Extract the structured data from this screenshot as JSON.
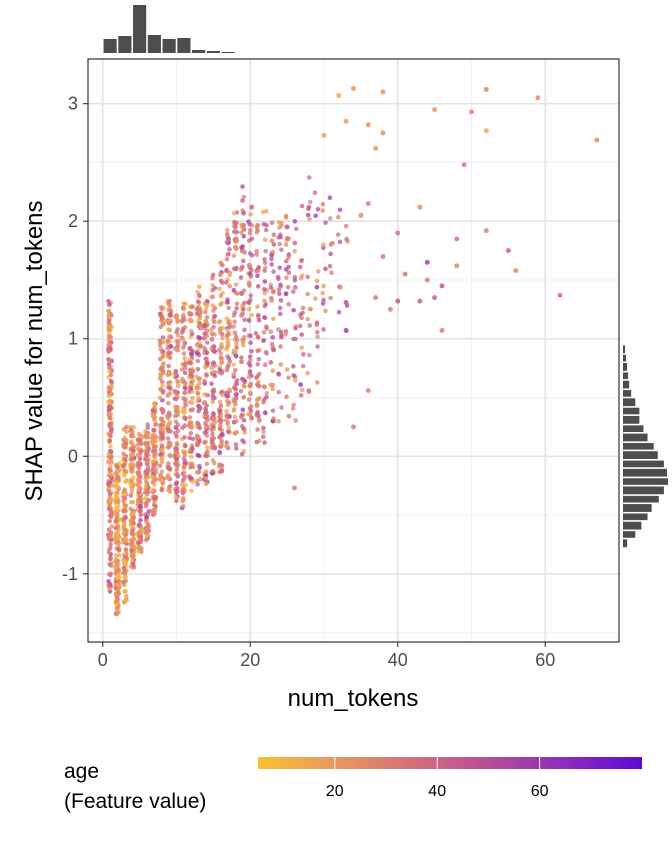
{
  "chart_data": {
    "type": "scatter",
    "title": "",
    "xlabel": "num_tokens",
    "ylabel": "SHAP value for num_tokens",
    "xlim": [
      -2,
      70
    ],
    "ylim": [
      -1.58,
      3.38
    ],
    "x_ticks": [
      0,
      20,
      40,
      60
    ],
    "y_ticks": [
      -1,
      0,
      1,
      2,
      3
    ],
    "grid": true,
    "color_scale": {
      "title_line1": "age",
      "title_line2": "(Feature value)",
      "range": [
        5,
        80
      ],
      "ticks": [
        20,
        40,
        60
      ],
      "colors": [
        "#f9c033",
        "#e8985e",
        "#d4707a",
        "#b84d98",
        "#8b2cbd",
        "#5a0bd1"
      ]
    },
    "marginal_x_histogram": {
      "bin_width": 2,
      "bin_start": 1,
      "counts": [
        14,
        17,
        48,
        18,
        14,
        15,
        3,
        2,
        1
      ]
    },
    "marginal_y_histogram": {
      "bin_edges": [
        -0.78,
        -0.7,
        -0.63,
        -0.55,
        -0.48,
        -0.4,
        -0.33,
        -0.25,
        -0.18,
        -0.1,
        -0.03,
        0.05,
        0.12,
        0.2,
        0.27,
        0.35,
        0.42,
        0.5,
        0.57,
        0.65,
        0.72,
        0.8,
        0.87,
        0.95
      ],
      "counts": [
        4,
        12,
        18,
        24,
        28,
        35,
        40,
        44,
        43,
        40,
        34,
        30,
        24,
        20,
        16,
        16,
        12,
        8,
        6,
        5,
        4,
        3,
        2
      ]
    },
    "columns": [
      {
        "x": 1,
        "y_min": -1.15,
        "y_max": 1.32,
        "age_mid": 25,
        "n": 200
      },
      {
        "x": 2,
        "y_min": -1.35,
        "y_max": -0.05,
        "age_mid": 18,
        "n": 170
      },
      {
        "x": 3,
        "y_min": -1.25,
        "y_max": 0.25,
        "age_mid": 20,
        "n": 130
      },
      {
        "x": 4,
        "y_min": -0.95,
        "y_max": 0.25,
        "age_mid": 22,
        "n": 120
      },
      {
        "x": 5,
        "y_min": -0.82,
        "y_max": 0.2,
        "age_mid": 24,
        "n": 100
      },
      {
        "x": 6,
        "y_min": -0.72,
        "y_max": 0.28,
        "age_mid": 24,
        "n": 90
      },
      {
        "x": 7,
        "y_min": -0.5,
        "y_max": 0.45,
        "age_mid": 25,
        "n": 90
      },
      {
        "x": 8,
        "y_min": -0.3,
        "y_max": 1.28,
        "age_mid": 25,
        "n": 100
      },
      {
        "x": 9,
        "y_min": -0.32,
        "y_max": 1.35,
        "age_mid": 27,
        "n": 90
      },
      {
        "x": 10,
        "y_min": -0.42,
        "y_max": 1.2,
        "age_mid": 28,
        "n": 85
      },
      {
        "x": 11,
        "y_min": -0.45,
        "y_max": 1.3,
        "age_mid": 28,
        "n": 85
      },
      {
        "x": 12,
        "y_min": -0.3,
        "y_max": 1.3,
        "age_mid": 28,
        "n": 85
      },
      {
        "x": 13,
        "y_min": -0.25,
        "y_max": 1.45,
        "age_mid": 28,
        "n": 85
      },
      {
        "x": 14,
        "y_min": -0.25,
        "y_max": 1.35,
        "age_mid": 30,
        "n": 80
      },
      {
        "x": 15,
        "y_min": -0.15,
        "y_max": 1.55,
        "age_mid": 30,
        "n": 80
      },
      {
        "x": 16,
        "y_min": -0.15,
        "y_max": 1.65,
        "age_mid": 30,
        "n": 75
      },
      {
        "x": 17,
        "y_min": 0.05,
        "y_max": 1.95,
        "age_mid": 30,
        "n": 70
      },
      {
        "x": 18,
        "y_min": 0.05,
        "y_max": 2.1,
        "age_mid": 30,
        "n": 70
      },
      {
        "x": 19,
        "y_min": 0.0,
        "y_max": 2.3,
        "age_mid": 30,
        "n": 65
      },
      {
        "x": 20,
        "y_min": 0.3,
        "y_max": 2.15,
        "age_mid": 32,
        "n": 55
      },
      {
        "x": 21,
        "y_min": 0.1,
        "y_max": 2.05,
        "age_mid": 32,
        "n": 45
      },
      {
        "x": 22,
        "y_min": 0.05,
        "y_max": 2.1,
        "age_mid": 33,
        "n": 40
      },
      {
        "x": 23,
        "y_min": 0.25,
        "y_max": 2.05,
        "age_mid": 33,
        "n": 35
      },
      {
        "x": 24,
        "y_min": 0.15,
        "y_max": 2.0,
        "age_mid": 34,
        "n": 30
      },
      {
        "x": 25,
        "y_min": 0.3,
        "y_max": 2.25,
        "age_mid": 34,
        "n": 25
      },
      {
        "x": 26,
        "y_min": 0.25,
        "y_max": 2.0,
        "age_mid": 35,
        "n": 20
      },
      {
        "x": 27,
        "y_min": 0.45,
        "y_max": 2.15,
        "age_mid": 35,
        "n": 18
      },
      {
        "x": 28,
        "y_min": 0.5,
        "y_max": 2.4,
        "age_mid": 35,
        "n": 16
      },
      {
        "x": 29,
        "y_min": 0.6,
        "y_max": 2.45,
        "age_mid": 35,
        "n": 14
      },
      {
        "x": 30,
        "y_min": 1.0,
        "y_max": 2.35,
        "age_mid": 35,
        "n": 12
      },
      {
        "x": 31,
        "y_min": 1.3,
        "y_max": 2.2,
        "age_mid": 38,
        "n": 8
      },
      {
        "x": 32,
        "y_min": 1.2,
        "y_max": 2.2,
        "age_mid": 38,
        "n": 7
      },
      {
        "x": 33,
        "y_min": 1.1,
        "y_max": 2.1,
        "age_mid": 40,
        "n": 6
      }
    ],
    "outliers": [
      {
        "x": 32,
        "y": 3.07,
        "age": 15
      },
      {
        "x": 34,
        "y": 3.13,
        "age": 20
      },
      {
        "x": 30,
        "y": 2.73,
        "age": 15
      },
      {
        "x": 33,
        "y": 2.85,
        "age": 18
      },
      {
        "x": 36,
        "y": 2.82,
        "age": 22
      },
      {
        "x": 37,
        "y": 2.62,
        "age": 20
      },
      {
        "x": 38,
        "y": 3.1,
        "age": 22
      },
      {
        "x": 38,
        "y": 2.75,
        "age": 22
      },
      {
        "x": 35,
        "y": 2.05,
        "age": 22
      },
      {
        "x": 36,
        "y": 2.15,
        "age": 28
      },
      {
        "x": 37,
        "y": 1.35,
        "age": 30
      },
      {
        "x": 38,
        "y": 1.7,
        "age": 30
      },
      {
        "x": 39,
        "y": 1.25,
        "age": 28
      },
      {
        "x": 40,
        "y": 1.9,
        "age": 32
      },
      {
        "x": 41,
        "y": 1.55,
        "age": 30
      },
      {
        "x": 43,
        "y": 2.12,
        "age": 25
      },
      {
        "x": 44,
        "y": 1.65,
        "age": 55
      },
      {
        "x": 44,
        "y": 1.5,
        "age": 30
      },
      {
        "x": 45,
        "y": 2.95,
        "age": 20
      },
      {
        "x": 45,
        "y": 1.35,
        "age": 40
      },
      {
        "x": 46,
        "y": 1.45,
        "age": 45
      },
      {
        "x": 46,
        "y": 1.07,
        "age": 30
      },
      {
        "x": 48,
        "y": 1.85,
        "age": 30
      },
      {
        "x": 48,
        "y": 1.62,
        "age": 25
      },
      {
        "x": 49,
        "y": 2.48,
        "age": 30
      },
      {
        "x": 50,
        "y": 2.93,
        "age": 25
      },
      {
        "x": 52,
        "y": 3.12,
        "age": 25
      },
      {
        "x": 52,
        "y": 2.77,
        "age": 15
      },
      {
        "x": 52,
        "y": 1.92,
        "age": 28
      },
      {
        "x": 55,
        "y": 1.75,
        "age": 40
      },
      {
        "x": 56,
        "y": 1.58,
        "age": 25
      },
      {
        "x": 59,
        "y": 3.05,
        "age": 25
      },
      {
        "x": 62,
        "y": 1.37,
        "age": 35
      },
      {
        "x": 67,
        "y": 2.69,
        "age": 25
      },
      {
        "x": 36,
        "y": 0.56,
        "age": 25
      },
      {
        "x": 34,
        "y": 0.25,
        "age": 30
      },
      {
        "x": 33,
        "y": 1.07,
        "age": 58
      },
      {
        "x": 40,
        "y": 1.32,
        "age": 45
      },
      {
        "x": 43,
        "y": 1.32,
        "age": 40
      },
      {
        "x": 26,
        "y": -0.27,
        "age": 30
      }
    ]
  }
}
